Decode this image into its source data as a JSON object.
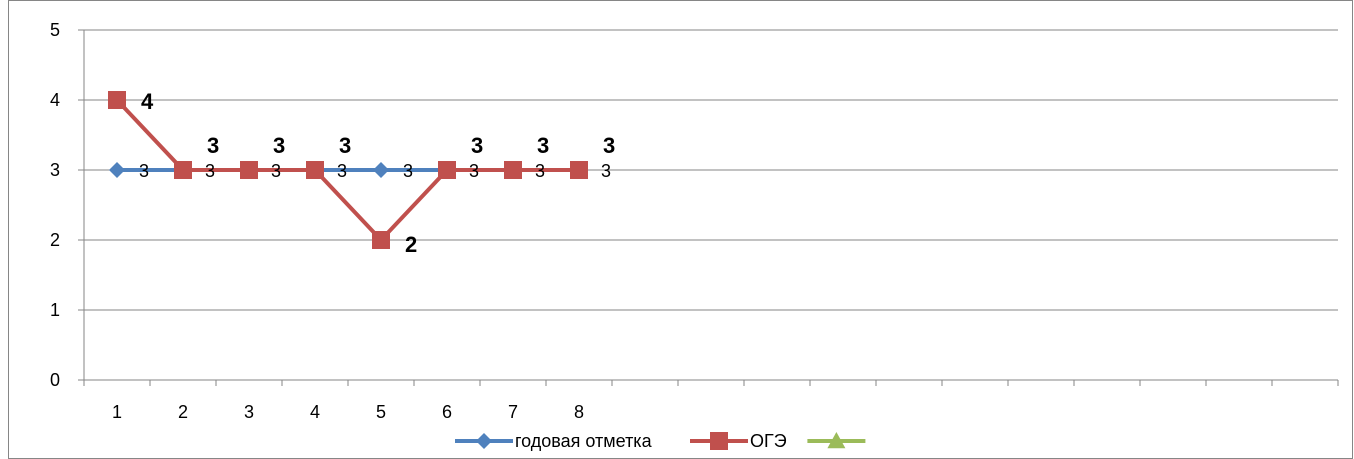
{
  "chart_data": {
    "type": "line",
    "title": "",
    "xlabel": "",
    "ylabel": "",
    "x_tick_labels": [
      "1",
      "2",
      "3",
      "4",
      "5",
      "6",
      "7",
      "8"
    ],
    "category_slots": 19,
    "ylim": [
      0,
      5
    ],
    "y_ticks": [
      0,
      1,
      2,
      3,
      4,
      5
    ],
    "grid": "horizontal",
    "legend_position": "bottom",
    "series": [
      {
        "name": "годовая отметка",
        "values": [
          3,
          3,
          3,
          3,
          3,
          3,
          3,
          3
        ],
        "labels": [
          "3",
          "3",
          "3",
          "3",
          "3",
          "3",
          "3",
          "3"
        ],
        "color": "#4F81BD",
        "marker": "diamond"
      },
      {
        "name": "ОГЭ",
        "values": [
          4,
          3,
          3,
          3,
          2,
          3,
          3,
          3
        ],
        "labels": [
          "4",
          "3",
          "3",
          "3",
          "2",
          "3",
          "3",
          "3"
        ],
        "color": "#C0504D",
        "marker": "square"
      },
      {
        "name": "",
        "values": [],
        "labels": [],
        "color": "#9BBB59",
        "marker": "triangle"
      }
    ]
  }
}
